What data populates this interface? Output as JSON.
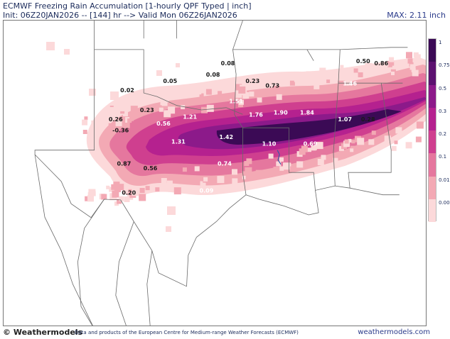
{
  "header": {
    "title": "ECMWF Freezing Rain Accumulation [1-hourly QPF Typed | inch]",
    "init_line": "Init: 06Z20JAN2026 -- [144] hr --> Valid Mon 06Z26JAN2026",
    "max_label": "MAX: 2.11 inch"
  },
  "legend": {
    "levels": [
      {
        "label": "1",
        "color": "#3b0a55"
      },
      {
        "label": "0.75",
        "color": "#5c1170"
      },
      {
        "label": "0.5",
        "color": "#8c1a8a"
      },
      {
        "label": "0.3",
        "color": "#b5218f"
      },
      {
        "label": "0.2",
        "color": "#cf3f8f"
      },
      {
        "label": "0.1",
        "color": "#e5779e"
      },
      {
        "label": "0.01",
        "color": "#f3a9b4"
      },
      {
        "label": "0.00",
        "color": "#fcd9da"
      }
    ]
  },
  "map_values": [
    {
      "text": "0.08",
      "lon": -94.9,
      "lat": 35.8
    },
    {
      "text": "0.08",
      "lon": -95.8,
      "lat": 35.3
    },
    {
      "text": "0.05",
      "lon": -98.4,
      "lat": 35.0
    },
    {
      "text": "0.02",
      "lon": -101.0,
      "lat": 34.6
    },
    {
      "text": "0.23",
      "lon": -93.4,
      "lat": 35.0
    },
    {
      "text": "0.73",
      "lon": -92.2,
      "lat": 34.8
    },
    {
      "text": "0.50",
      "lon": -86.7,
      "lat": 35.9
    },
    {
      "text": "0.86",
      "lon": -85.6,
      "lat": 35.8
    },
    {
      "text": "1.46",
      "lon": -87.5,
      "lat": 34.9
    },
    {
      "text": "0.23",
      "lon": -99.8,
      "lat": 33.7
    },
    {
      "text": "0.26",
      "lon": -101.7,
      "lat": 33.3
    },
    {
      "text": "-0.36",
      "lon": -101.4,
      "lat": 32.8
    },
    {
      "text": "0.56",
      "lon": -98.8,
      "lat": 33.1
    },
    {
      "text": "1.21",
      "lon": -97.2,
      "lat": 33.4
    },
    {
      "text": "1.51",
      "lon": -94.4,
      "lat": 34.1
    },
    {
      "text": "1.76",
      "lon": -93.2,
      "lat": 33.5
    },
    {
      "text": "1.90",
      "lon": -91.7,
      "lat": 33.6
    },
    {
      "text": "1.84",
      "lon": -90.1,
      "lat": 33.6
    },
    {
      "text": "1.07",
      "lon": -87.8,
      "lat": 33.3
    },
    {
      "text": "0.28",
      "lon": -86.4,
      "lat": 33.3
    },
    {
      "text": "1.31",
      "lon": -97.9,
      "lat": 32.3
    },
    {
      "text": "1.42",
      "lon": -95.0,
      "lat": 32.5
    },
    {
      "text": "1.10",
      "lon": -92.4,
      "lat": 32.2
    },
    {
      "text": "0.69",
      "lon": -89.9,
      "lat": 32.2
    },
    {
      "text": "0.87",
      "lon": -101.2,
      "lat": 31.3
    },
    {
      "text": "0.56",
      "lon": -99.6,
      "lat": 31.1
    },
    {
      "text": "0.74",
      "lon": -95.1,
      "lat": 31.3
    },
    {
      "text": "0.20",
      "lon": -100.9,
      "lat": 30.0
    },
    {
      "text": "0.09",
      "lon": -96.2,
      "lat": 30.1
    }
  ],
  "footer": {
    "logo": "© Weathermodels",
    "credit": "Data and products of the European Centre for Medium-range Weather Forecasts (ECMWF)",
    "site": "weathermodels.com"
  }
}
